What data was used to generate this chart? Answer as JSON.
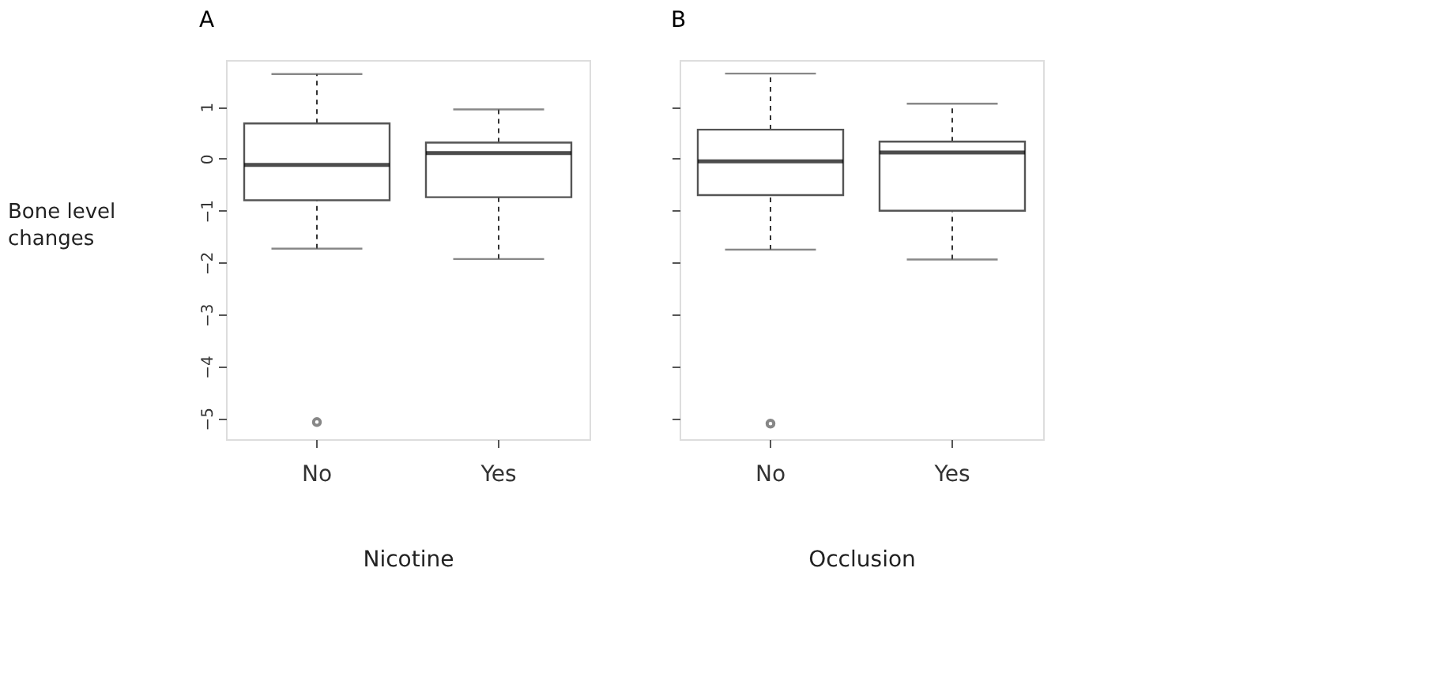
{
  "chart_data": [
    {
      "type": "box",
      "title": "A",
      "xlabel": "Nicotine",
      "ylabel": "Bone level changes",
      "categories": [
        "No",
        "Yes"
      ],
      "ylim": [
        -5.4,
        1.9
      ],
      "yticks": [
        -5,
        -4,
        -3,
        -2,
        -1,
        0,
        1
      ],
      "grid": false,
      "boxes": [
        {
          "low": -1.73,
          "q1": -0.8,
          "median": -0.12,
          "q3": 0.68,
          "high": 1.63,
          "outliers": [
            -5.07
          ]
        },
        {
          "low": -1.93,
          "q1": -0.74,
          "median": 0.11,
          "q3": 0.31,
          "high": 0.95
        }
      ]
    },
    {
      "type": "box",
      "title": "B",
      "xlabel": "Occlusion",
      "categories": [
        "No",
        "Yes"
      ],
      "ylim": [
        -5.4,
        1.9
      ],
      "yticks": [
        -5,
        -4,
        -3,
        -2,
        -1,
        0,
        1
      ],
      "tick_labels": "x",
      "grid": false,
      "boxes": [
        {
          "low": -1.75,
          "q1": -0.7,
          "median": -0.05,
          "q3": 0.56,
          "high": 1.64,
          "outliers": [
            -5.1
          ]
        },
        {
          "low": -1.94,
          "q1": -1.0,
          "median": 0.12,
          "q3": 0.33,
          "high": 1.06
        }
      ]
    }
  ]
}
